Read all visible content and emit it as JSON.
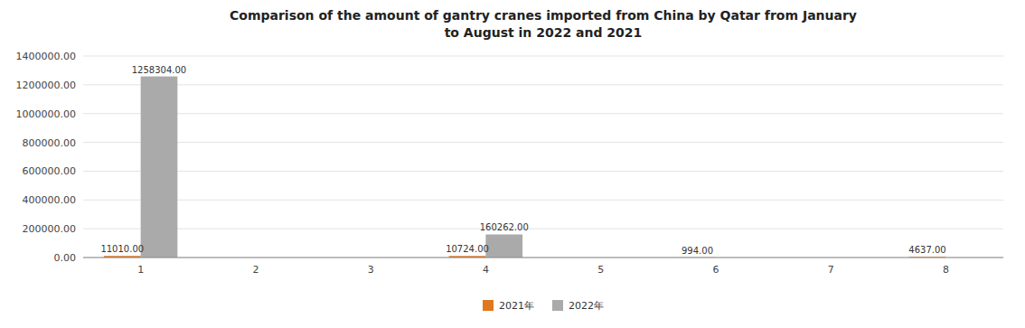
{
  "chart_data": {
    "type": "bar",
    "title": "Comparison of the amount of gantry cranes imported from China by Qatar from January\nto August in 2022 and 2021",
    "categories": [
      1,
      2,
      3,
      4,
      5,
      6,
      7,
      8
    ],
    "series": [
      {
        "name": "2021年",
        "color": "#E07820",
        "values": [
          11010.0,
          0,
          0,
          10724.0,
          0,
          994.0,
          0,
          4637.0
        ],
        "value_labels": [
          "11010.00",
          null,
          null,
          "10724.00",
          null,
          "994.00",
          null,
          "4637.00"
        ]
      },
      {
        "name": "2022年",
        "color": "#AAAAAA",
        "values": [
          1258304.0,
          0,
          0,
          160262.0,
          0,
          0,
          0,
          0
        ],
        "value_labels": [
          "1258304.00",
          null,
          null,
          "160262.00",
          null,
          null,
          null,
          null
        ]
      }
    ],
    "ylim": [
      0,
      1400000
    ],
    "yticks": [
      {
        "value": 0,
        "label": "0.00"
      },
      {
        "value": 200000,
        "label": "200000.00"
      },
      {
        "value": 400000,
        "label": "400000.00"
      },
      {
        "value": 600000,
        "label": "600000.00"
      },
      {
        "value": 800000,
        "label": "800000.00"
      },
      {
        "value": 1000000,
        "label": "1000000.00"
      },
      {
        "value": 1200000,
        "label": "1200000.00"
      },
      {
        "value": 1400000,
        "label": "1400000.00"
      }
    ],
    "grid": true,
    "legend": "bottom",
    "data_labels": true
  }
}
